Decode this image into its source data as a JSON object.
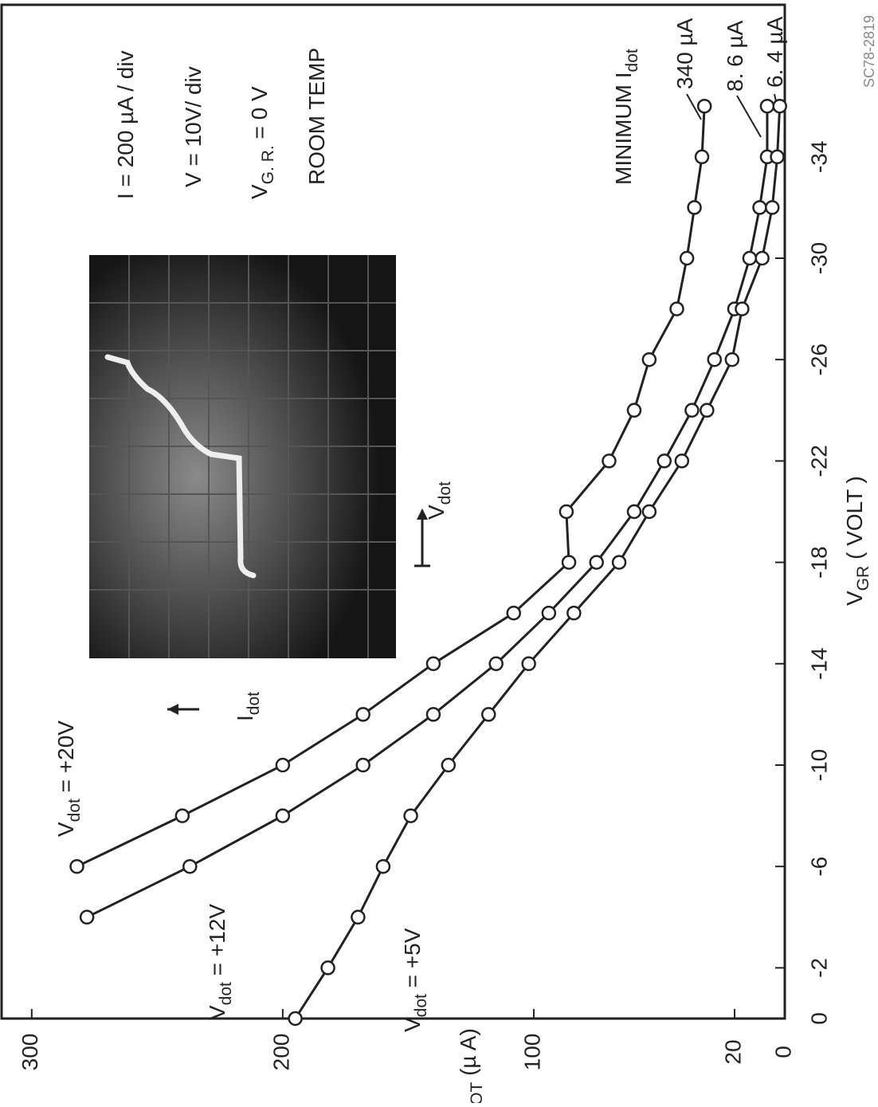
{
  "chart_data": {
    "type": "line",
    "code": "SC78-2819",
    "x_label": [
      {
        "t": "V"
      },
      {
        "sub": "GR"
      },
      {
        "t": " ( VOLT )"
      }
    ],
    "y_label": [
      {
        "t": "I"
      },
      {
        "sub": "DOT"
      },
      {
        "t": " (µ A)"
      }
    ],
    "xlim": [
      0,
      -40
    ],
    "xticks": [
      0,
      -2,
      -6,
      -10,
      -14,
      -18,
      -22,
      -26,
      -30,
      -34
    ],
    "ylim": [
      0,
      312
    ],
    "yticks": [
      0,
      20,
      100,
      200,
      300
    ],
    "marker": "open-circle",
    "series": [
      {
        "name": [
          {
            "t": "V"
          },
          {
            "sub": "dot"
          },
          {
            "t": " = +20V"
          }
        ],
        "color": "#222222",
        "x": [
          -6,
          -8,
          -10,
          -12,
          -14,
          -16,
          -18,
          -20,
          -22,
          -24,
          -26,
          -28,
          -30,
          -32,
          -34,
          -36
        ],
        "values": [
          282,
          240,
          200,
          168,
          140,
          108,
          86,
          87,
          70,
          60,
          54,
          43,
          39,
          36,
          33,
          32
        ]
      },
      {
        "name": [
          {
            "t": "V"
          },
          {
            "sub": "dot"
          },
          {
            "t": " = +12V"
          }
        ],
        "color": "#222222",
        "x": [
          -4,
          -6,
          -8,
          -10,
          -12,
          -14,
          -16,
          -18,
          -20,
          -22,
          -24,
          -26,
          -28,
          -30,
          -32,
          -34,
          -36
        ],
        "values": [
          278,
          237,
          200,
          168,
          140,
          115,
          94,
          75,
          60,
          48,
          37,
          28,
          20,
          14,
          10,
          7,
          7
        ]
      },
      {
        "name": [
          {
            "t": "V"
          },
          {
            "sub": "dot"
          },
          {
            "t": " = +5V"
          }
        ],
        "color": "#222222",
        "x": [
          0,
          -2,
          -4,
          -6,
          -8,
          -10,
          -12,
          -14,
          -16,
          -18,
          -20,
          -22,
          -24,
          -26,
          -28,
          -30,
          -32,
          -34,
          -36
        ],
        "values": [
          195,
          182,
          170,
          160,
          149,
          134,
          118,
          102,
          84,
          66,
          54,
          41,
          31,
          21,
          17,
          9,
          5,
          3,
          2
        ]
      }
    ],
    "annotations": [
      [
        {
          "t": "I  =  200 µA / div"
        }
      ],
      [
        {
          "t": "V  =  10V/ div"
        }
      ],
      [
        {
          "t": "V"
        },
        {
          "sub": "G. R."
        },
        {
          "t": "  =  0 V"
        }
      ],
      [
        {
          "t": "ROOM TEMP"
        }
      ],
      [
        {
          "t": "MINIMUM  I"
        },
        {
          "sub": "dot"
        }
      ],
      [
        {
          "t": "340 µA"
        }
      ],
      [
        {
          "t": "8. 6 µA"
        }
      ],
      [
        {
          "t": "6. 4 µA"
        }
      ],
      [
        {
          "t": "I"
        },
        {
          "sub": "dot"
        }
      ],
      [
        {
          "t": "V"
        },
        {
          "sub": "dot"
        }
      ]
    ]
  }
}
